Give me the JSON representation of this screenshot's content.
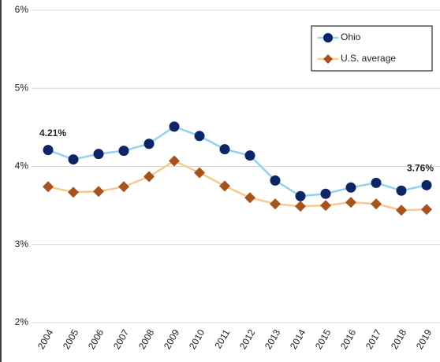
{
  "chart_data": {
    "type": "line",
    "categories": [
      "2004",
      "2005",
      "2006",
      "2007",
      "2008",
      "2009",
      "2010",
      "2011",
      "2012",
      "2013",
      "2014",
      "2015",
      "2016",
      "2017",
      "2018",
      "2019"
    ],
    "series": [
      {
        "name": "Ohio",
        "color": "#0d2566",
        "line_color": "#8fd3f0",
        "marker": "circle",
        "values": [
          4.21,
          4.09,
          4.16,
          4.2,
          4.29,
          4.51,
          4.39,
          4.22,
          4.14,
          3.82,
          3.62,
          3.65,
          3.73,
          3.79,
          3.69,
          3.76
        ],
        "value_labels": [
          "4.21%",
          null,
          null,
          null,
          null,
          null,
          null,
          null,
          null,
          null,
          null,
          null,
          null,
          null,
          null,
          "3.76%"
        ]
      },
      {
        "name": "U.S. average",
        "color": "#a5531f",
        "line_color": "#f9c98c",
        "marker": "diamond",
        "values": [
          3.74,
          3.67,
          3.68,
          3.74,
          3.87,
          4.07,
          3.92,
          3.75,
          3.6,
          3.52,
          3.49,
          3.5,
          3.54,
          3.52,
          3.44,
          3.45
        ]
      }
    ],
    "ylim": [
      2,
      6
    ],
    "yticks": [
      {
        "value": 2,
        "label": "2%"
      },
      {
        "value": 3,
        "label": "3%"
      },
      {
        "value": 4,
        "label": "4%"
      },
      {
        "value": 5,
        "label": "5%"
      },
      {
        "value": 6,
        "label": "6%"
      }
    ],
    "grid": true,
    "legend": "upper right"
  }
}
